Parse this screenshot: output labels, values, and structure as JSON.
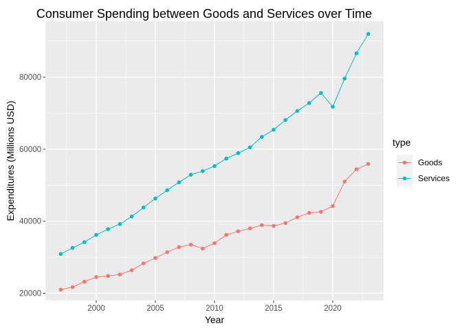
{
  "chart_data": {
    "type": "line",
    "title": "Consumer Spending between Goods and Services over Time",
    "xlabel": "Year",
    "ylabel": "Expenditures (Millions USD)",
    "x": [
      1997,
      1998,
      1999,
      2000,
      2001,
      2002,
      2003,
      2004,
      2005,
      2006,
      2007,
      2008,
      2009,
      2010,
      2011,
      2012,
      2013,
      2014,
      2015,
      2016,
      2017,
      2018,
      2019,
      2020,
      2021,
      2022,
      2023
    ],
    "xlim": [
      1995.7,
      2024.3
    ],
    "ylim": [
      18000,
      95500
    ],
    "xticks": [
      2000,
      2005,
      2010,
      2015,
      2020
    ],
    "xtick_labels": [
      "2000",
      "2005",
      "2010",
      "2015",
      "2020"
    ],
    "yticks": [
      20000,
      40000,
      60000,
      80000
    ],
    "ytick_labels": [
      "20000",
      "40000",
      "60000",
      "80000"
    ],
    "grid": true,
    "legend": {
      "title": "type",
      "position": "right"
    },
    "series": [
      {
        "name": "Goods",
        "color": "#f8766d",
        "values": [
          21000,
          21700,
          23200,
          24500,
          24800,
          25200,
          26400,
          28300,
          29800,
          31400,
          32800,
          33500,
          32400,
          33900,
          36200,
          37200,
          38000,
          38900,
          38700,
          39500,
          41100,
          42300,
          42600,
          44200,
          51000,
          54400,
          55900
        ]
      },
      {
        "name": "Services",
        "color": "#00bfc4",
        "values": [
          30900,
          32600,
          34200,
          36200,
          37800,
          39200,
          41300,
          43800,
          46300,
          48600,
          50800,
          52900,
          53900,
          55300,
          57400,
          58900,
          60500,
          63400,
          65400,
          68100,
          70600,
          72800,
          75600,
          71800,
          79600,
          86600,
          92000
        ]
      }
    ]
  }
}
